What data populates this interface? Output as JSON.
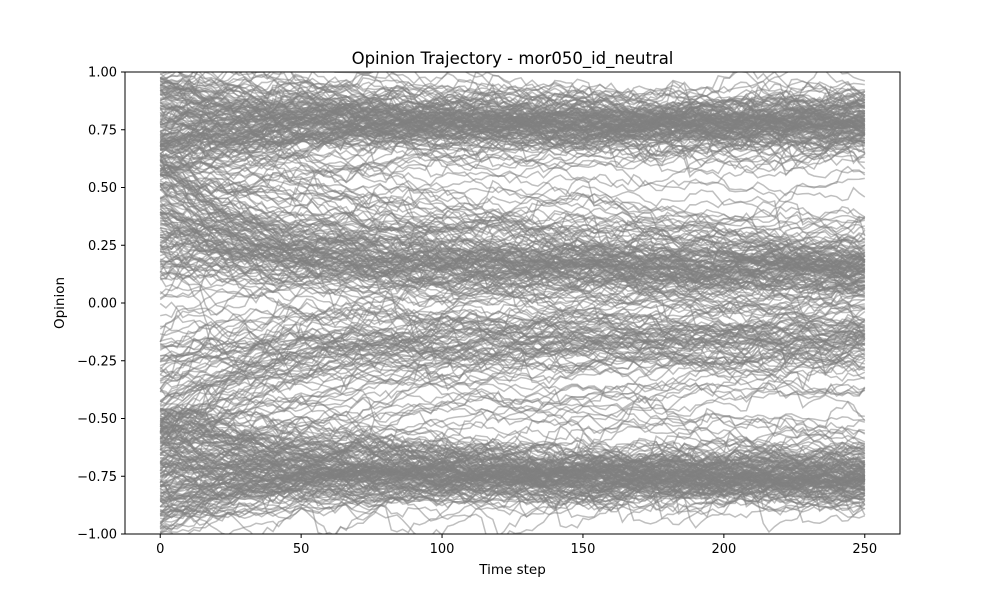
{
  "chart_data": {
    "type": "line",
    "title": "Opinion Trajectory - mor050_id_neutral",
    "xlabel": "Time step",
    "ylabel": "Opinion",
    "xlim": [
      -12.5,
      262.5
    ],
    "ylim": [
      -1.0,
      1.0
    ],
    "x_ticks": [
      0,
      50,
      100,
      150,
      200,
      250
    ],
    "x_tick_labels": [
      "0",
      "50",
      "100",
      "150",
      "200",
      "250"
    ],
    "y_ticks": [
      -1.0,
      -0.75,
      -0.5,
      -0.25,
      0.0,
      0.25,
      0.5,
      0.75,
      1.0
    ],
    "y_tick_labels": [
      "−1.00",
      "−0.75",
      "−0.50",
      "−0.25",
      "0.00",
      "0.25",
      "0.50",
      "0.75",
      "1.00"
    ],
    "grid": false,
    "line_color": "#808080",
    "line_opacity": 0.5,
    "time_steps": 250,
    "agent_count": 500,
    "series_groups": [
      {
        "start_range": [
          0.55,
          1.0
        ],
        "end_center": 0.78,
        "end_spread": 0.05,
        "share": 0.28
      },
      {
        "start_range": [
          0.1,
          0.7
        ],
        "end_center": 0.14,
        "end_spread": 0.12,
        "share": 0.2
      },
      {
        "start_range": [
          -0.65,
          -0.15
        ],
        "end_center": -0.15,
        "end_spread": 0.08,
        "share": 0.1
      },
      {
        "start_range": [
          -1.0,
          -0.45
        ],
        "end_center": -0.76,
        "end_spread": 0.05,
        "share": 0.3
      },
      {
        "start_range": [
          -0.8,
          0.8
        ],
        "end_center": 0.0,
        "end_spread": 0.55,
        "share": 0.12
      }
    ]
  }
}
